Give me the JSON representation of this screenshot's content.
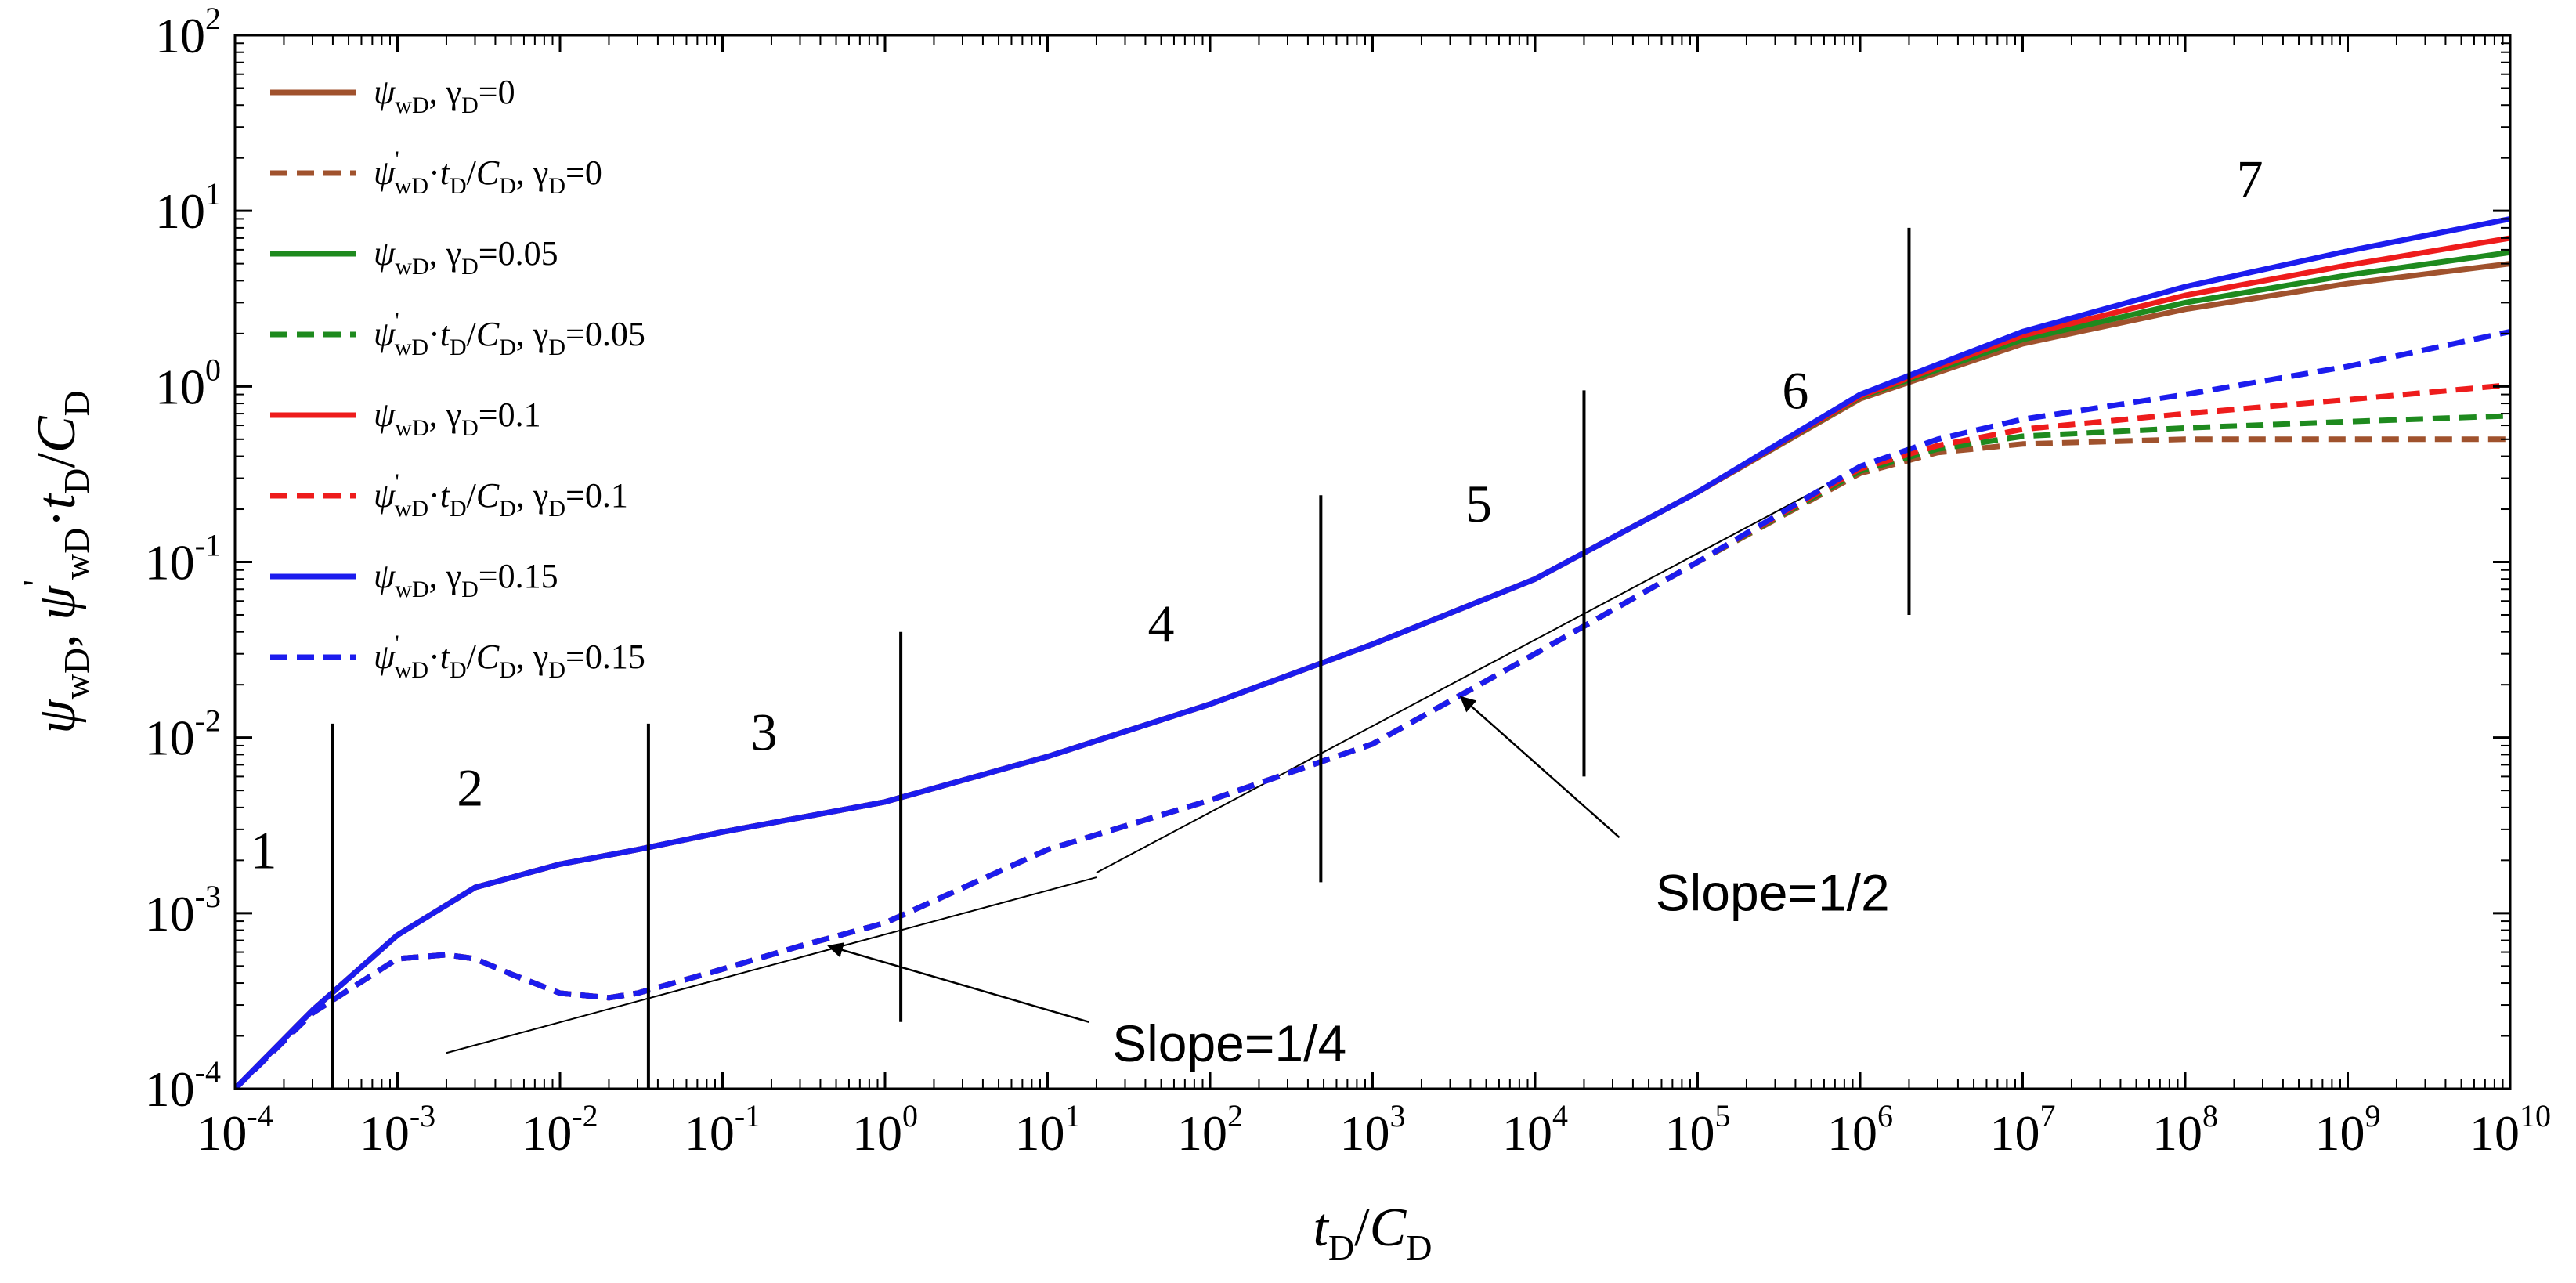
{
  "chart_data": {
    "type": "line",
    "x_scale": "log",
    "y_scale": "log",
    "xlim": [
      0.0001,
      10000000000
    ],
    "ylim": [
      0.0001,
      100
    ],
    "grid": false,
    "legend_position": "top-left",
    "xlabel": {
      "base": "t",
      "sub": "D",
      "mid": "/",
      "base2": "C",
      "sub2": "D"
    },
    "ylabel": {
      "parts": [
        {
          "t": "ψ",
          "italic": true
        },
        {
          "t": "wD",
          "sub": true
        },
        {
          "t": ", ",
          "italic": false
        },
        {
          "t": "ψ",
          "italic": true
        },
        {
          "t": "'",
          "sup": true
        },
        {
          "t": "wD",
          "sub": true
        },
        {
          "t": "·",
          "italic": false
        },
        {
          "t": "t",
          "italic": true
        },
        {
          "t": "D",
          "sub": true
        },
        {
          "t": "/",
          "italic": false
        },
        {
          "t": "C",
          "italic": true
        },
        {
          "t": "D",
          "sub": true
        }
      ]
    },
    "x_ticks": [
      {
        "base": "10",
        "exp": "-4",
        "value": 0.0001
      },
      {
        "base": "10",
        "exp": "-3",
        "value": 0.001
      },
      {
        "base": "10",
        "exp": "-2",
        "value": 0.01
      },
      {
        "base": "10",
        "exp": "-1",
        "value": 0.1
      },
      {
        "base": "10",
        "exp": "0",
        "value": 1
      },
      {
        "base": "10",
        "exp": "1",
        "value": 10
      },
      {
        "base": "10",
        "exp": "2",
        "value": 100
      },
      {
        "base": "10",
        "exp": "3",
        "value": 1000
      },
      {
        "base": "10",
        "exp": "4",
        "value": 10000
      },
      {
        "base": "10",
        "exp": "5",
        "value": 100000
      },
      {
        "base": "10",
        "exp": "6",
        "value": 1000000
      },
      {
        "base": "10",
        "exp": "7",
        "value": 10000000
      },
      {
        "base": "10",
        "exp": "8",
        "value": 100000000
      },
      {
        "base": "10",
        "exp": "9",
        "value": 1000000000
      },
      {
        "base": "10",
        "exp": "10",
        "value": 10000000000
      }
    ],
    "y_ticks": [
      {
        "base": "10",
        "exp": "-4",
        "value": 0.0001
      },
      {
        "base": "10",
        "exp": "-3",
        "value": 0.001
      },
      {
        "base": "10",
        "exp": "-2",
        "value": 0.01
      },
      {
        "base": "10",
        "exp": "-1",
        "value": 0.1
      },
      {
        "base": "10",
        "exp": "0",
        "value": 1
      },
      {
        "base": "10",
        "exp": "1",
        "value": 10
      },
      {
        "base": "10",
        "exp": "2",
        "value": 100
      }
    ],
    "series": [
      {
        "name": "ψwD, γD=0",
        "legend": {
          "kind": "psi",
          "gamma": "0"
        },
        "color": "#a0522d",
        "dash": false,
        "x": [
          0.0001,
          0.0003,
          0.001,
          0.003,
          0.01,
          0.03,
          0.1,
          1,
          10,
          100,
          1000,
          10000,
          100000,
          1000000,
          10000000,
          100000000,
          1000000000,
          10000000000
        ],
        "y": [
          0.0001,
          0.00028,
          0.00075,
          0.0014,
          0.0019,
          0.0023,
          0.0029,
          0.0043,
          0.0078,
          0.0155,
          0.034,
          0.08,
          0.25,
          0.85,
          1.75,
          2.75,
          3.85,
          5.0
        ]
      },
      {
        "name": "ψ'wD·tD/CD, γD=0",
        "legend": {
          "kind": "deriv",
          "gamma": "0"
        },
        "color": "#a0522d",
        "dash": true,
        "x": [
          0.0001,
          0.0003,
          0.001,
          0.002,
          0.003,
          0.005,
          0.01,
          0.02,
          0.03,
          0.1,
          0.3,
          1,
          10,
          100,
          1000,
          10000,
          100000,
          1000000,
          3000000,
          10000000,
          100000000,
          1000000000,
          10000000000
        ],
        "y": [
          0.0001,
          0.00027,
          0.00055,
          0.00058,
          0.00055,
          0.00045,
          0.00035,
          0.00033,
          0.00035,
          0.00048,
          0.00065,
          0.00088,
          0.0023,
          0.0044,
          0.0092,
          0.03,
          0.1,
          0.32,
          0.42,
          0.47,
          0.5,
          0.5,
          0.5
        ]
      },
      {
        "name": "ψwD, γD=0.05",
        "legend": {
          "kind": "psi",
          "gamma": "0.05"
        },
        "color": "#1e8a1e",
        "dash": false,
        "x": [
          0.0001,
          0.0003,
          0.001,
          0.003,
          0.01,
          0.03,
          0.1,
          1,
          10,
          100,
          1000,
          10000,
          100000,
          1000000,
          10000000,
          100000000,
          1000000000,
          10000000000
        ],
        "y": [
          0.0001,
          0.00028,
          0.00075,
          0.0014,
          0.0019,
          0.0023,
          0.0029,
          0.0043,
          0.0078,
          0.0155,
          0.034,
          0.08,
          0.25,
          0.87,
          1.85,
          3.0,
          4.3,
          5.8
        ]
      },
      {
        "name": "ψ'wD·tD/CD, γD=0.05",
        "legend": {
          "kind": "deriv",
          "gamma": "0.05"
        },
        "color": "#1e8a1e",
        "dash": true,
        "x": [
          0.0001,
          0.0003,
          0.001,
          0.002,
          0.003,
          0.005,
          0.01,
          0.02,
          0.03,
          0.1,
          0.3,
          1,
          10,
          100,
          1000,
          10000,
          100000,
          1000000,
          3000000,
          10000000,
          100000000,
          1000000000,
          10000000000
        ],
        "y": [
          0.0001,
          0.00027,
          0.00055,
          0.00058,
          0.00055,
          0.00045,
          0.00035,
          0.00033,
          0.00035,
          0.00048,
          0.00065,
          0.00088,
          0.0023,
          0.0044,
          0.0092,
          0.03,
          0.1,
          0.33,
          0.44,
          0.52,
          0.58,
          0.63,
          0.68
        ]
      },
      {
        "name": "ψwD, γD=0.1",
        "legend": {
          "kind": "psi",
          "gamma": "0.1"
        },
        "color": "#ee1c1c",
        "dash": false,
        "x": [
          0.0001,
          0.0003,
          0.001,
          0.003,
          0.01,
          0.03,
          0.1,
          1,
          10,
          100,
          1000,
          10000,
          100000,
          1000000,
          10000000,
          100000000,
          1000000000,
          10000000000
        ],
        "y": [
          0.0001,
          0.00028,
          0.00075,
          0.0014,
          0.0019,
          0.0023,
          0.0029,
          0.0043,
          0.0078,
          0.0155,
          0.034,
          0.08,
          0.25,
          0.88,
          1.95,
          3.3,
          4.9,
          7.0
        ]
      },
      {
        "name": "ψ'wD·tD/CD, γD=0.1",
        "legend": {
          "kind": "deriv",
          "gamma": "0.1"
        },
        "color": "#ee1c1c",
        "dash": true,
        "x": [
          0.0001,
          0.0003,
          0.001,
          0.002,
          0.003,
          0.005,
          0.01,
          0.02,
          0.03,
          0.1,
          0.3,
          1,
          10,
          100,
          1000,
          10000,
          100000,
          1000000,
          3000000,
          10000000,
          100000000,
          1000000000,
          10000000000
        ],
        "y": [
          0.0001,
          0.00027,
          0.00055,
          0.00058,
          0.00055,
          0.00045,
          0.00035,
          0.00033,
          0.00035,
          0.00048,
          0.00065,
          0.00088,
          0.0023,
          0.0044,
          0.0092,
          0.03,
          0.1,
          0.34,
          0.46,
          0.57,
          0.7,
          0.84,
          1.02
        ]
      },
      {
        "name": "ψwD, γD=0.15",
        "legend": {
          "kind": "psi",
          "gamma": "0.15"
        },
        "color": "#1c1cee",
        "dash": false,
        "x": [
          0.0001,
          0.0003,
          0.001,
          0.003,
          0.01,
          0.03,
          0.1,
          1,
          10,
          100,
          1000,
          10000,
          100000,
          1000000,
          10000000,
          100000000,
          1000000000,
          10000000000
        ],
        "y": [
          0.0001,
          0.00028,
          0.00075,
          0.0014,
          0.0019,
          0.0023,
          0.0029,
          0.0043,
          0.0078,
          0.0155,
          0.034,
          0.08,
          0.25,
          0.9,
          2.05,
          3.7,
          5.9,
          9.0
        ]
      },
      {
        "name": "ψ'wD·tD/CD, γD=0.15",
        "legend": {
          "kind": "deriv",
          "gamma": "0.15"
        },
        "color": "#1c1cee",
        "dash": true,
        "x": [
          0.0001,
          0.0003,
          0.001,
          0.002,
          0.003,
          0.005,
          0.01,
          0.02,
          0.03,
          0.1,
          0.3,
          1,
          10,
          100,
          1000,
          10000,
          100000,
          1000000,
          3000000,
          10000000,
          100000000,
          1000000000,
          10000000000
        ],
        "y": [
          0.0001,
          0.00027,
          0.00055,
          0.00058,
          0.00055,
          0.00045,
          0.00035,
          0.00033,
          0.00035,
          0.00048,
          0.00065,
          0.00088,
          0.0023,
          0.0044,
          0.0092,
          0.03,
          0.1,
          0.35,
          0.5,
          0.65,
          0.9,
          1.3,
          2.05
        ]
      }
    ],
    "region_dividers": [
      {
        "x": 0.0004,
        "y1": 0.0001,
        "y2": 0.012
      },
      {
        "x": 0.035,
        "y1": 0.0001,
        "y2": 0.012
      },
      {
        "x": 1.25,
        "y1": 0.00024,
        "y2": 0.04
      },
      {
        "x": 480,
        "y1": 0.0015,
        "y2": 0.24
      },
      {
        "x": 20000,
        "y1": 0.006,
        "y2": 0.95
      },
      {
        "x": 2000000,
        "y1": 0.05,
        "y2": 8.0
      }
    ],
    "region_labels": [
      {
        "text": "1",
        "x": 0.00015,
        "y": 0.0018
      },
      {
        "text": "2",
        "x": 0.0028,
        "y": 0.0041
      },
      {
        "text": "3",
        "x": 0.18,
        "y": 0.0085
      },
      {
        "text": "4",
        "x": 50,
        "y": 0.035
      },
      {
        "text": "5",
        "x": 4500,
        "y": 0.17
      },
      {
        "text": "6",
        "x": 400000,
        "y": 0.75
      },
      {
        "text": "7",
        "x": 250000000,
        "y": 12
      }
    ],
    "reference_lines": [
      {
        "name": "slope-quarter",
        "x1": 0.002,
        "y1": 0.00016,
        "x2": 20,
        "y2": 0.0016
      },
      {
        "name": "slope-half",
        "x1": 20,
        "y1": 0.0017,
        "x2": 600000,
        "y2": 0.27
      }
    ],
    "annotations": [
      {
        "text": "Slope=1/4",
        "text_x": 25,
        "text_y": 0.00018,
        "arrow_from_x": 18,
        "arrow_from_y": 0.00024,
        "arrow_to_x": 0.45,
        "arrow_to_y": 0.00065
      },
      {
        "text": "Slope=1/2",
        "text_x": 55000,
        "text_y": 0.0013,
        "arrow_from_x": 33000,
        "arrow_from_y": 0.0027,
        "arrow_to_x": 3500,
        "arrow_to_y": 0.017
      }
    ]
  }
}
